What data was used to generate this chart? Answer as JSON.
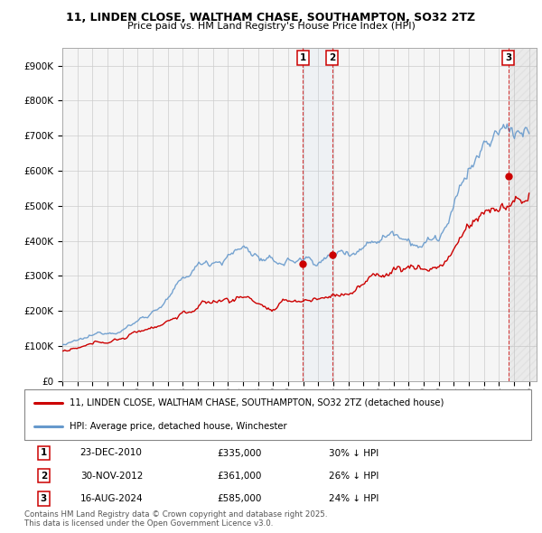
{
  "title1": "11, LINDEN CLOSE, WALTHAM CHASE, SOUTHAMPTON, SO32 2TZ",
  "title2": "Price paid vs. HM Land Registry's House Price Index (HPI)",
  "ylim": [
    0,
    950000
  ],
  "yticks": [
    0,
    100000,
    200000,
    300000,
    400000,
    500000,
    600000,
    700000,
    800000,
    900000
  ],
  "ytick_labels": [
    "£0",
    "£100K",
    "£200K",
    "£300K",
    "£400K",
    "£500K",
    "£600K",
    "£700K",
    "£800K",
    "£900K"
  ],
  "hpi_color": "#6699cc",
  "price_color": "#cc0000",
  "grid_color": "#cccccc",
  "bg_color": "#f5f5f5",
  "legend_label_price": "11, LINDEN CLOSE, WALTHAM CHASE, SOUTHAMPTON, SO32 2TZ (detached house)",
  "legend_label_hpi": "HPI: Average price, detached house, Winchester",
  "sale1_date": "23-DEC-2010",
  "sale1_price": "£335,000",
  "sale1_hpi": "30% ↓ HPI",
  "sale1_x": 2010.97,
  "sale1_y": 335000,
  "sale2_date": "30-NOV-2012",
  "sale2_price": "£361,000",
  "sale2_hpi": "26% ↓ HPI",
  "sale2_x": 2012.92,
  "sale2_y": 361000,
  "sale3_date": "16-AUG-2024",
  "sale3_price": "£585,000",
  "sale3_hpi": "24% ↓ HPI",
  "sale3_x": 2024.62,
  "sale3_y": 585000,
  "footer": "Contains HM Land Registry data © Crown copyright and database right 2025.\nThis data is licensed under the Open Government Licence v3.0.",
  "xmin": 1995.0,
  "xmax": 2026.5,
  "hpi_base": [
    95000,
    100000,
    108000,
    120000,
    138000,
    160000,
    190000,
    225000,
    260000,
    295000,
    320000,
    340000,
    360000,
    340000,
    305000,
    315000,
    320000,
    325000,
    335000,
    355000,
    385000,
    420000,
    450000,
    460000,
    455000,
    470000,
    540000,
    660000,
    720000,
    750000,
    760000,
    770000
  ],
  "price_base": [
    88000,
    90000,
    95000,
    104000,
    115000,
    130000,
    148000,
    170000,
    195000,
    210000,
    220000,
    228000,
    238000,
    225000,
    200000,
    212000,
    218000,
    224000,
    232000,
    248000,
    268000,
    290000,
    310000,
    320000,
    315000,
    325000,
    375000,
    440000,
    470000,
    490000,
    500000,
    505000
  ]
}
